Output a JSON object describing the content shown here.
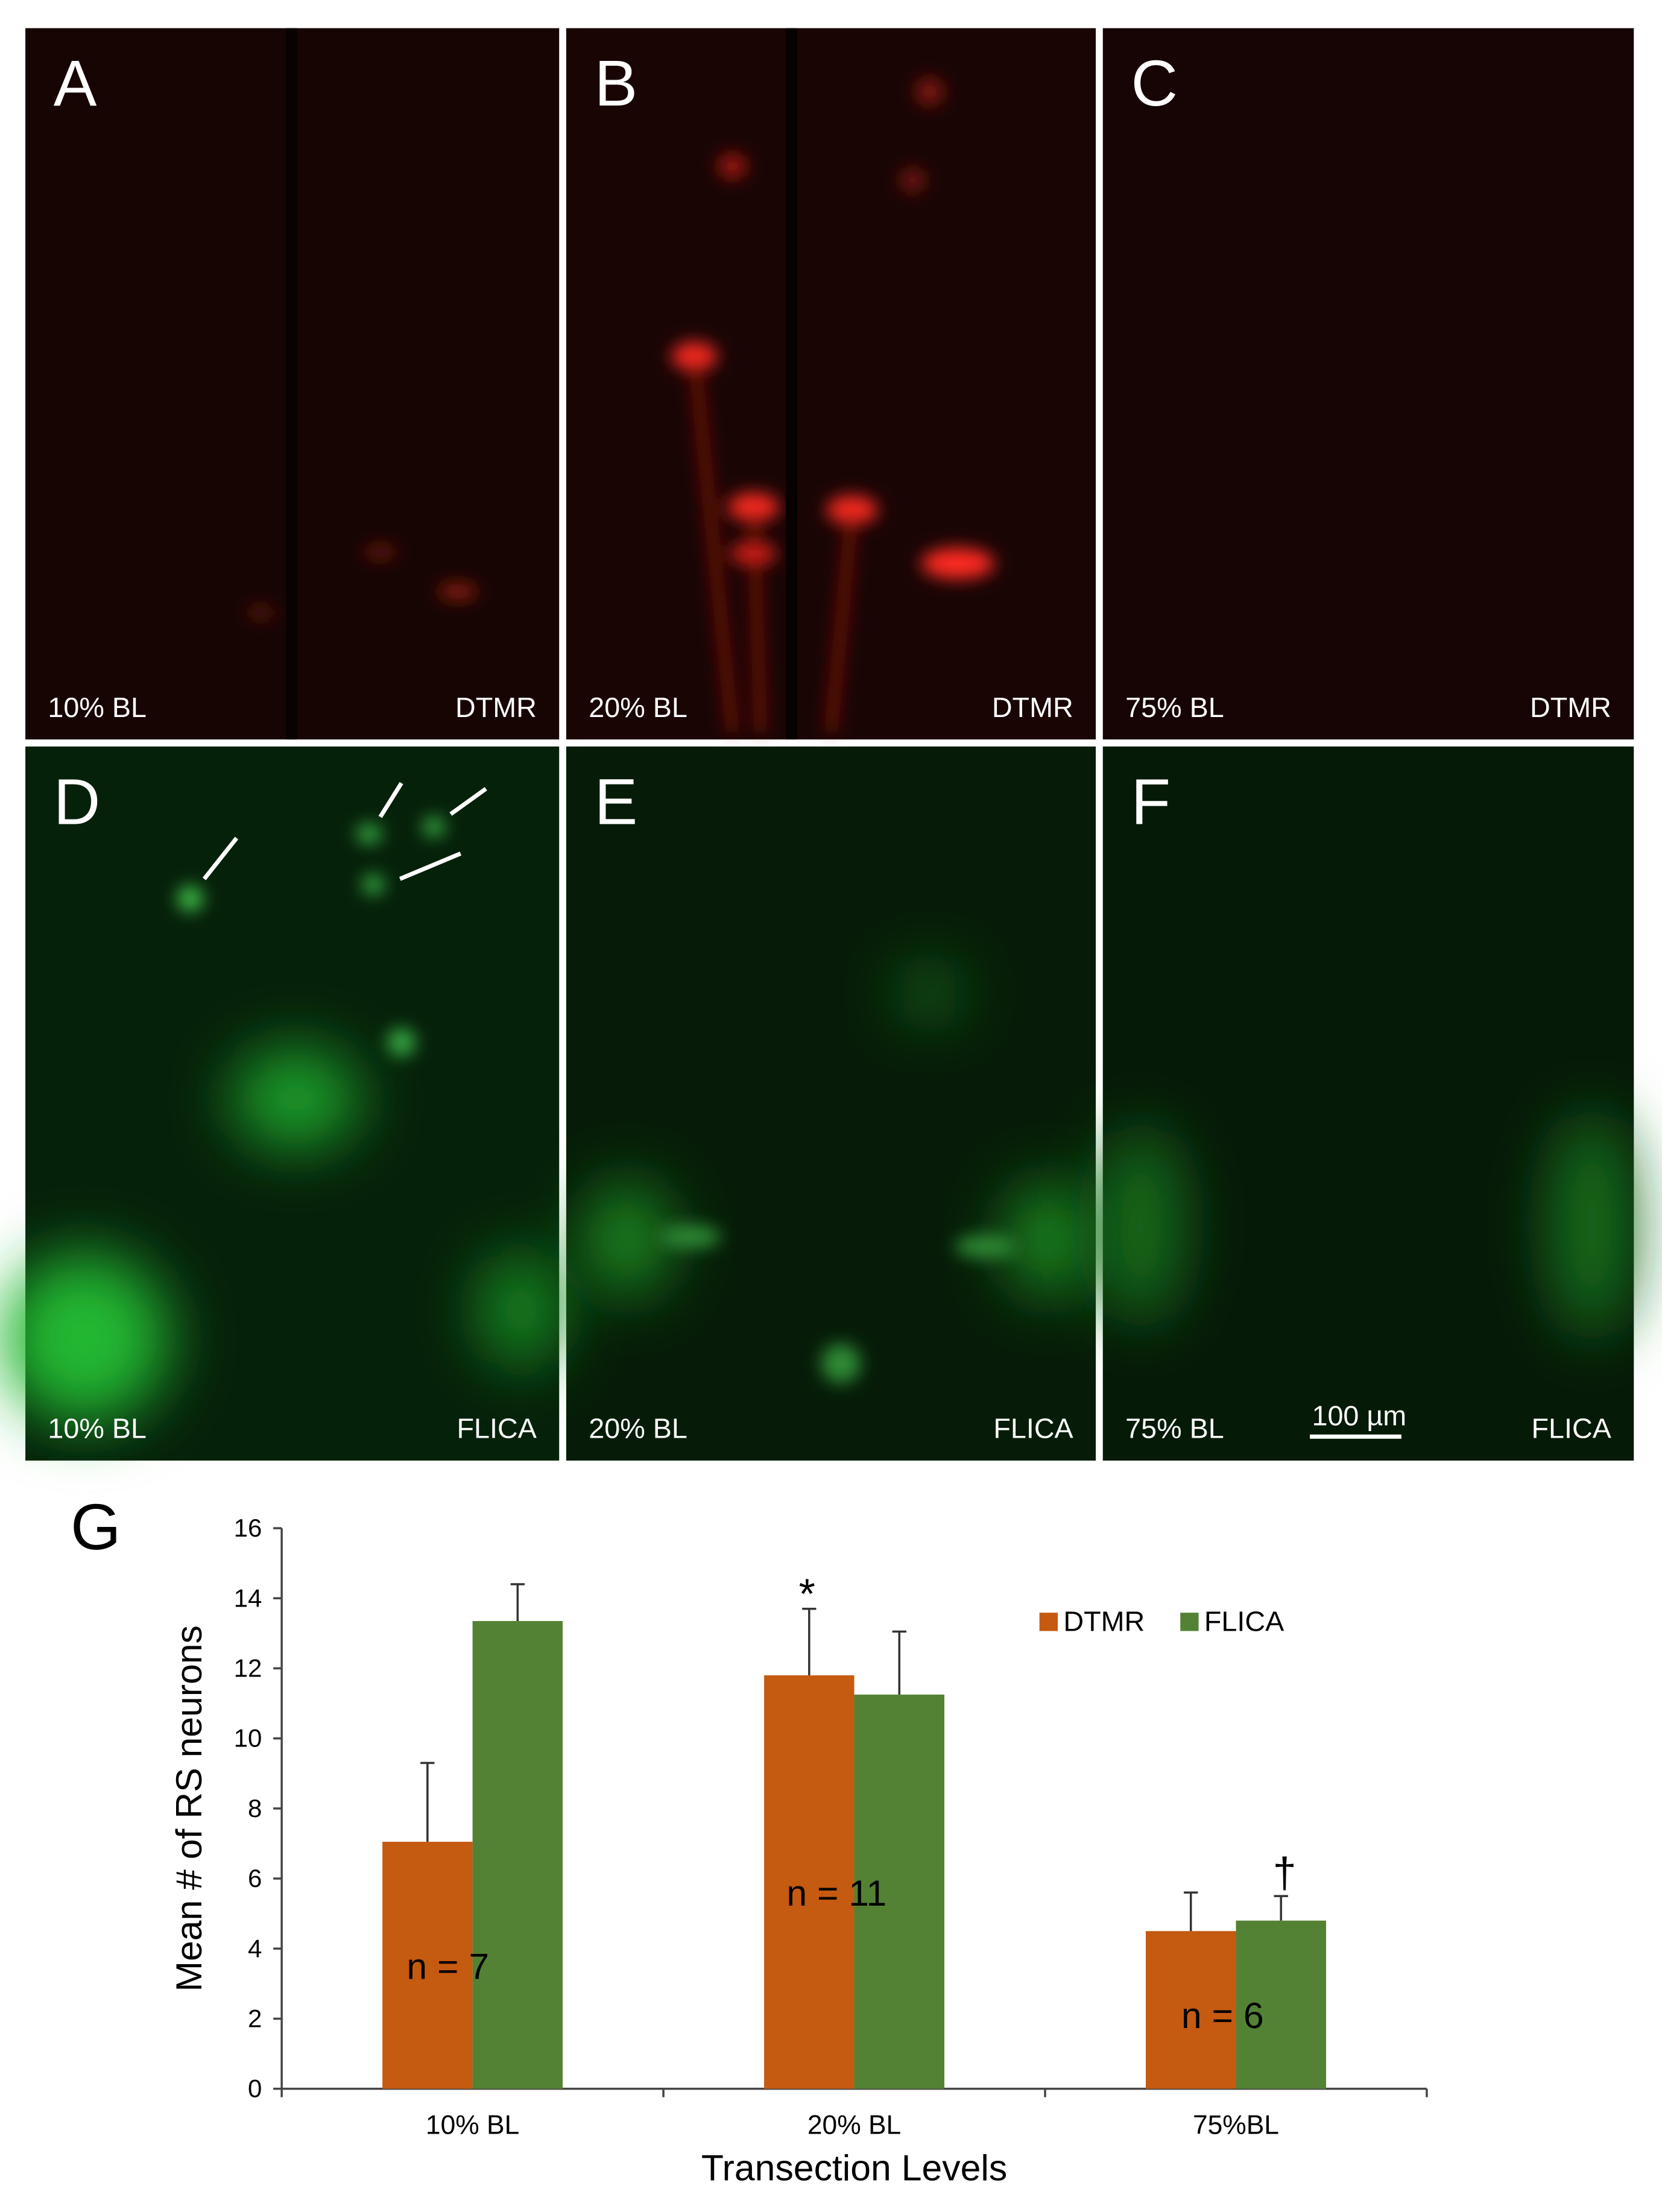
{
  "panels": [
    {
      "letter": "A",
      "level": "10% BL",
      "stain": "DTMR"
    },
    {
      "letter": "B",
      "level": "20% BL",
      "stain": "DTMR"
    },
    {
      "letter": "C",
      "level": "75% BL",
      "stain": "DTMR"
    },
    {
      "letter": "D",
      "level": "10% BL",
      "stain": "FLICA"
    },
    {
      "letter": "E",
      "level": "20% BL",
      "stain": "FLICA"
    },
    {
      "letter": "F",
      "level": "75% BL",
      "stain": "FLICA"
    }
  ],
  "scale_bar": "100 µm",
  "chart_label": "G",
  "chart_data": {
    "type": "bar",
    "xlabel": "Transection Levels",
    "ylabel": "Mean # of RS neurons",
    "categories": [
      "10% BL",
      "20% BL",
      "75%BL"
    ],
    "series": [
      {
        "name": "DTMR",
        "color": "#c55a11",
        "values": [
          7.05,
          11.8,
          4.5
        ],
        "errors": [
          2.25,
          1.9,
          1.1
        ]
      },
      {
        "name": "FLICA",
        "color": "#548235",
        "values": [
          13.35,
          11.25,
          4.8
        ],
        "errors": [
          1.05,
          1.8,
          0.7
        ]
      }
    ],
    "ylim": [
      0,
      16
    ],
    "yticks": [
      0,
      2,
      4,
      6,
      8,
      10,
      12,
      14,
      16
    ],
    "annotations": [
      {
        "text": "n = 7"
      },
      {
        "text": "n = 11"
      },
      {
        "text": "n = 6"
      },
      {
        "text": "*"
      },
      {
        "text": "†"
      }
    ],
    "legend": "upper right"
  }
}
